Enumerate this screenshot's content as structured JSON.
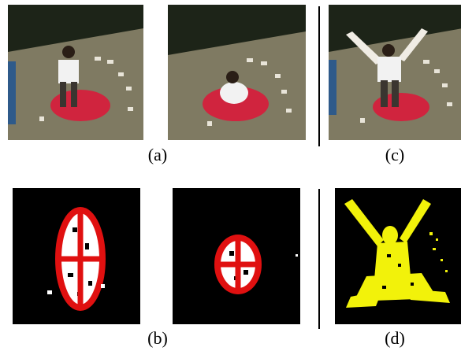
{
  "captions": {
    "a": "(a)",
    "b": "(b)",
    "c": "(c)",
    "d": "(d)"
  },
  "colors": {
    "floor": "#7f7a62",
    "wall": "#1d2418",
    "mat": "#d0243e",
    "ellipse": "#e01010",
    "silhouette": "#ffffff",
    "motion": "#f2f20a",
    "background": "#000000"
  },
  "images": {
    "a_left": "photo-person-standing-on-mat",
    "a_right": "photo-person-crouching-on-mat",
    "c": "photo-person-arms-raised",
    "b_left": "silhouette-with-fitted-ellipse",
    "b_right": "silhouette-crouch-with-fitted-ellipse",
    "d": "motion-energy-image-yellow"
  }
}
